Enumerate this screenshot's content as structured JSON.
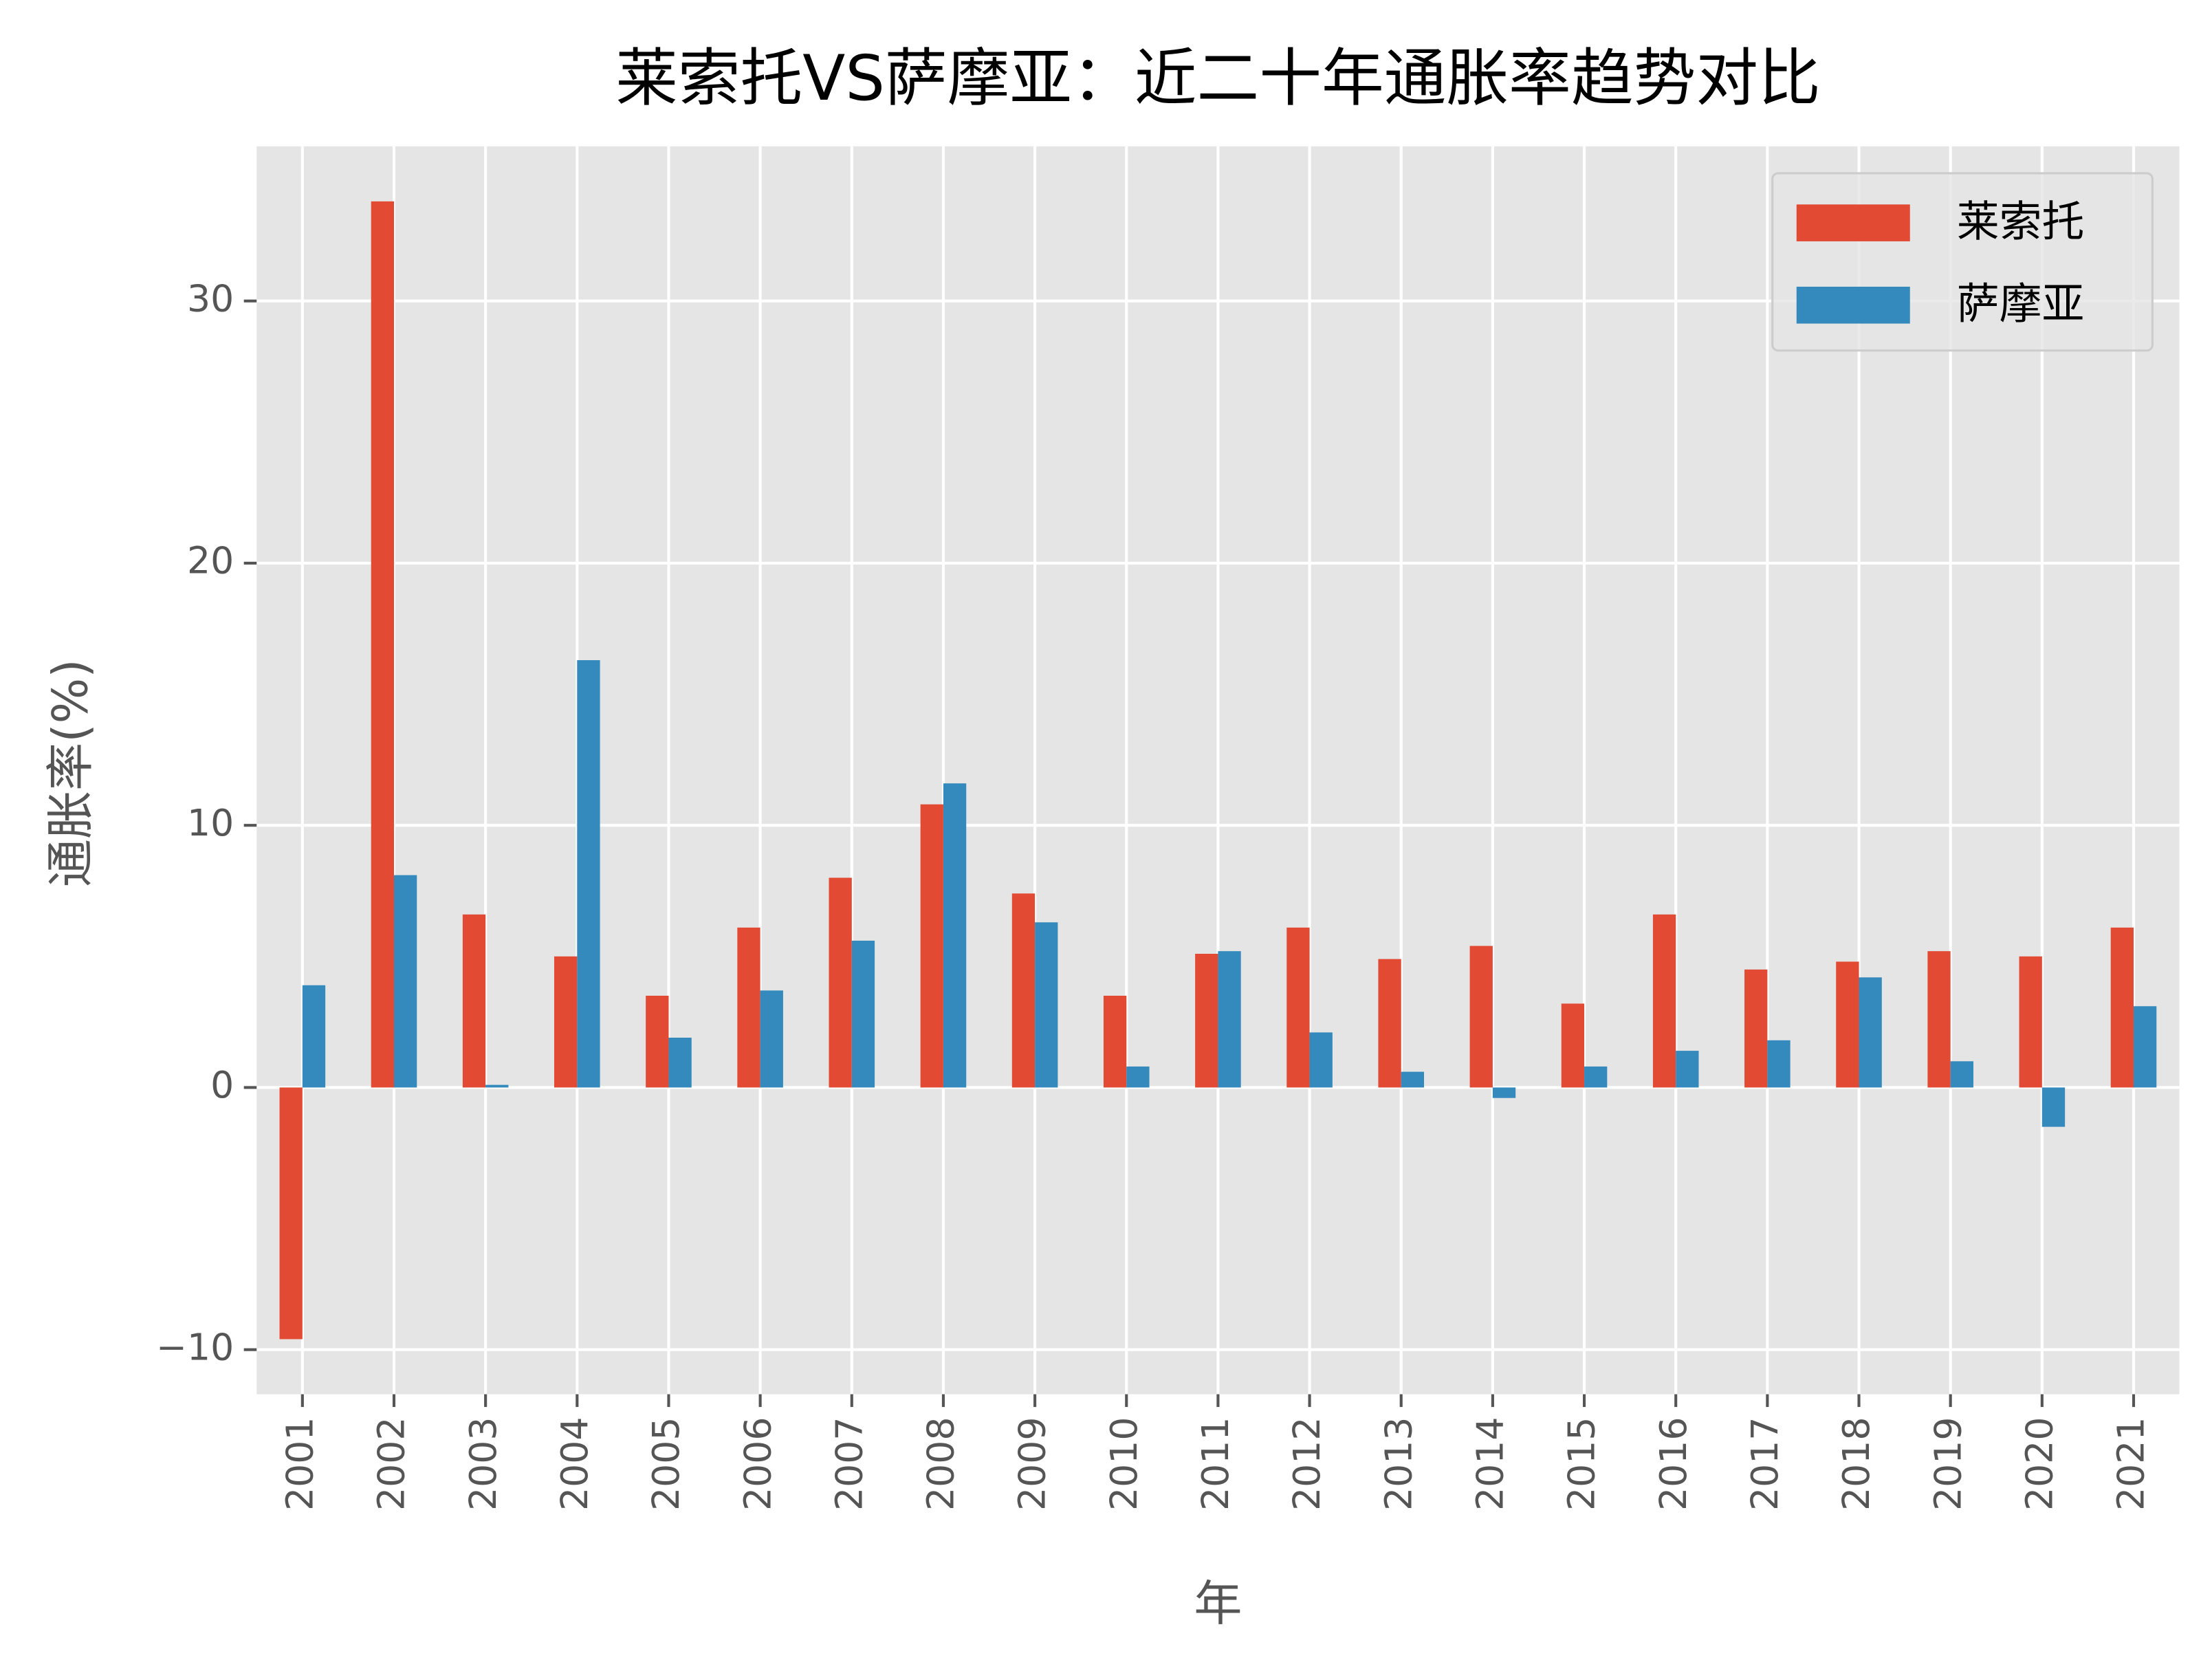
{
  "chart_data": {
    "type": "bar",
    "title": "莱索托VS萨摩亚：近二十年通胀率趋势对比",
    "x_label": "年",
    "y_label": "通胀率(%)",
    "categories": [
      "2001",
      "2002",
      "2003",
      "2004",
      "2005",
      "2006",
      "2007",
      "2008",
      "2009",
      "2010",
      "2011",
      "2012",
      "2013",
      "2014",
      "2015",
      "2016",
      "2017",
      "2018",
      "2019",
      "2020",
      "2021"
    ],
    "series": [
      {
        "name": "莱索托",
        "color": "#e24a33",
        "values": [
          -9.6,
          33.8,
          6.6,
          5.0,
          3.5,
          6.1,
          8.0,
          10.8,
          7.4,
          3.5,
          5.1,
          6.1,
          4.9,
          5.4,
          3.2,
          6.6,
          4.5,
          4.8,
          5.2,
          5.0,
          6.1
        ]
      },
      {
        "name": "萨摩亚",
        "color": "#348abd",
        "values": [
          3.9,
          8.1,
          0.1,
          16.3,
          1.9,
          3.7,
          5.6,
          11.6,
          6.3,
          0.8,
          5.2,
          2.1,
          0.6,
          -0.4,
          0.8,
          1.4,
          1.8,
          4.2,
          1.0,
          -1.5,
          3.1
        ]
      }
    ],
    "ylim": [
      -11.7,
      35.9
    ],
    "yticks": [
      {
        "value": -10,
        "label": "−10"
      },
      0,
      10,
      20,
      30
    ],
    "grid": true,
    "legend": "upper right"
  }
}
